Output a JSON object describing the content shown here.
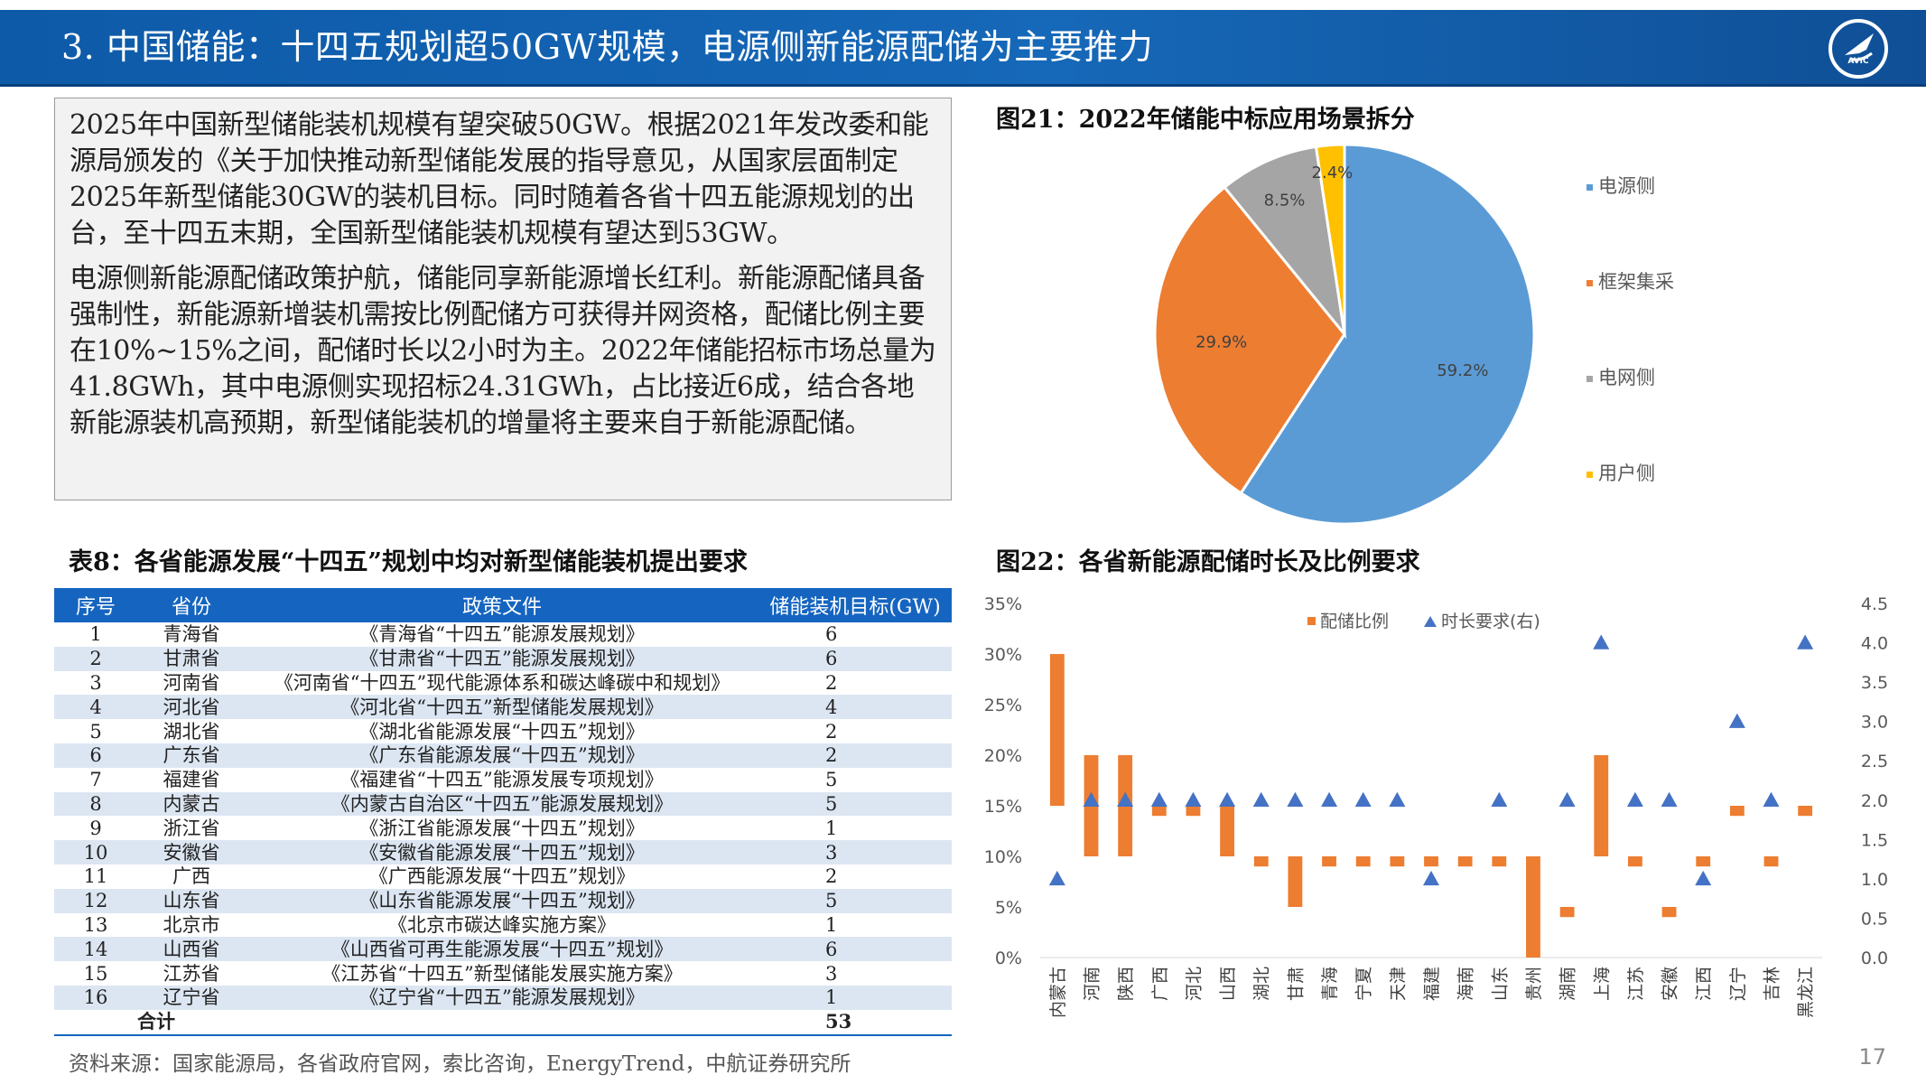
{
  "header": {
    "title": "3. 中国储能：十四五规划超50GW规模，电源侧新能源配储为主要推力",
    "logo_text": "AVIC"
  },
  "intro": {
    "paragraph1": "2025年中国新型储能装机规模有望突破50GW。根据2021年发改委和能源局颁发的《关于加快推动新型储能发展的指导意见，从国家层面制定2025年新型储能30GW的装机目标。同时随着各省十四五能源规划的出台，至十四五末期，全国新型储能装机规模有望达到53GW。",
    "paragraph2": "电源侧新能源配储政策护航，储能同享新能源增长红利。新能源配储具备强制性，新能源新增装机需按比例配储方可获得并网资格，配储比例主要在10%~15%之间，配储时长以2小时为主。2022年储能招标市场总量为41.8GWh，其中电源侧实现招标24.31GWh，占比接近6成，结合各地新能源装机高预期，新型储能装机的增量将主要来自于新能源配储。"
  },
  "fig21": {
    "caption": "图21：2022年储能中标应用场景拆分"
  },
  "table8": {
    "caption": "表8：各省能源发展“十四五”规划中均对新型储能装机提出要求",
    "headers": [
      "序号",
      "省份",
      "政策文件",
      "储能装机目标(GW)"
    ],
    "rows": [
      [
        "1",
        "青海省",
        "《青海省“十四五”能源发展规划》",
        "6"
      ],
      [
        "2",
        "甘肃省",
        "《甘肃省“十四五”能源发展规划》",
        "6"
      ],
      [
        "3",
        "河南省",
        "《河南省“十四五”现代能源体系和碳达峰碳中和规划》",
        "2"
      ],
      [
        "4",
        "河北省",
        "《河北省“十四五”新型储能发展规划》",
        "4"
      ],
      [
        "5",
        "湖北省",
        "《湖北省能源发展“十四五”规划》",
        "2"
      ],
      [
        "6",
        "广东省",
        "《广东省能源发展“十四五”规划》",
        "2"
      ],
      [
        "7",
        "福建省",
        "《福建省“十四五”能源发展专项规划》",
        "5"
      ],
      [
        "8",
        "内蒙古",
        "《内蒙古自治区“十四五”能源发展规划》",
        "5"
      ],
      [
        "9",
        "浙江省",
        "《浙江省能源发展“十四五”规划》",
        "1"
      ],
      [
        "10",
        "安徽省",
        "《安徽省能源发展“十四五”规划》",
        "3"
      ],
      [
        "11",
        "广西",
        "《广西能源发展“十四五”规划》",
        "2"
      ],
      [
        "12",
        "山东省",
        "《山东省能源发展“十四五”规划》",
        "5"
      ],
      [
        "13",
        "北京市",
        "《北京市碳达峰实施方案》",
        "1"
      ],
      [
        "14",
        "山西省",
        "《山西省可再生能源发展“十四五”规划》",
        "6"
      ],
      [
        "15",
        "江苏省",
        "《江苏省“十四五”新型储能发展实施方案》",
        "3"
      ],
      [
        "16",
        "辽宁省",
        "《辽宁省“十四五”能源发展规划》",
        "1"
      ]
    ],
    "total_label": "合计",
    "total_value": "53"
  },
  "fig22": {
    "caption": "图22：各省新能源配储时长及比例要求"
  },
  "source": "资料来源：国家能源局，各省政府官网，索比咨询，EnergyTrend，中航证券研究所",
  "page_number": "17",
  "chart_data": [
    {
      "type": "pie",
      "title": "",
      "labels": [
        "电源侧",
        "框架集采",
        "电网侧",
        "用户侧"
      ],
      "values": [
        59.2,
        29.9,
        8.5,
        2.4
      ],
      "value_labels": [
        "59.2%",
        "29.9%",
        "8.5%",
        "2.4%"
      ],
      "colors": [
        "#5b9bd5",
        "#ed7d31",
        "#a5a5a5",
        "#ffc000"
      ],
      "legend_position": "right"
    },
    {
      "type": "bar",
      "subtype": "floating-range-bar-with-markers",
      "categories": [
        "内蒙古",
        "河南",
        "陕西",
        "广西",
        "河北",
        "山西",
        "湖北",
        "甘肃",
        "青海",
        "宁夏",
        "天津",
        "福建",
        "海南",
        "山东",
        "贵州",
        "湖南",
        "上海",
        "江苏",
        "安徽",
        "江西",
        "辽宁",
        "吉林",
        "黑龙江"
      ],
      "series": [
        {
          "name": "配储比例",
          "kind": "range-bar",
          "axis": "left",
          "color": "#ed7d31",
          "low": [
            15,
            10,
            10,
            14,
            14,
            10,
            9,
            5,
            9,
            9,
            9,
            9,
            9,
            9,
            0,
            4,
            10,
            9,
            4,
            9,
            14,
            9,
            14
          ],
          "high": [
            30,
            20,
            20,
            15,
            15,
            15,
            10,
            10,
            10,
            10,
            10,
            10,
            10,
            10,
            10,
            5,
            20,
            10,
            5,
            10,
            15,
            10,
            15
          ]
        },
        {
          "name": "时长要求(右)",
          "kind": "marker",
          "marker": "triangle",
          "axis": "right",
          "color": "#4472c4",
          "values": [
            1,
            2,
            2,
            2,
            2,
            2,
            2,
            2,
            2,
            2,
            2,
            1,
            null,
            2,
            null,
            2,
            4,
            2,
            2,
            1,
            3,
            2,
            4
          ]
        }
      ],
      "y_left": {
        "min": 0,
        "max": 35,
        "step": 5,
        "format": "percent"
      },
      "y_right": {
        "min": 0,
        "max": 4.5,
        "step": 0.5
      },
      "legend_position": "top"
    }
  ]
}
